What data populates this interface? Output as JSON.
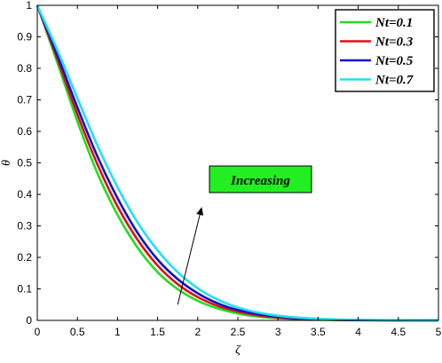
{
  "chart_data": {
    "type": "line",
    "title": "",
    "xlabel": "ζ",
    "ylabel": "θ",
    "xlim": [
      0,
      5
    ],
    "ylim": [
      0,
      1
    ],
    "x_ticks": [
      "0",
      "0.5",
      "1",
      "1.5",
      "2",
      "2.5",
      "3",
      "3.5",
      "4",
      "4.5",
      "5"
    ],
    "y_ticks": [
      "0",
      "0.1",
      "0.2",
      "0.3",
      "0.4",
      "0.5",
      "0.6",
      "0.7",
      "0.8",
      "0.9",
      "1"
    ],
    "grid": false,
    "legend_position": "top-right",
    "x": [
      0,
      0.25,
      0.5,
      0.75,
      1,
      1.25,
      1.5,
      1.75,
      2,
      2.25,
      2.5,
      2.75,
      3,
      3.25,
      3.5,
      3.75,
      4,
      4.25,
      4.5,
      4.75,
      5
    ],
    "series": [
      {
        "name": "Nt=0.1",
        "color": "#22dd22",
        "values": [
          1,
          0.818,
          0.632,
          0.467,
          0.335,
          0.231,
          0.153,
          0.099,
          0.062,
          0.038,
          0.022,
          0.012,
          0.007,
          0.004,
          0.002,
          0.001,
          0.0005,
          0.0002,
          0.0001,
          5e-05,
          0
        ]
      },
      {
        "name": "Nt=0.3",
        "color": "#dd1111",
        "values": [
          1,
          0.83,
          0.654,
          0.495,
          0.362,
          0.256,
          0.174,
          0.115,
          0.074,
          0.046,
          0.028,
          0.016,
          0.009,
          0.005,
          0.003,
          0.0015,
          0.0008,
          0.0004,
          0.0002,
          0.0001,
          0
        ]
      },
      {
        "name": "Nt=0.5",
        "color": "#1111cc",
        "values": [
          1,
          0.842,
          0.676,
          0.52,
          0.388,
          0.278,
          0.193,
          0.131,
          0.086,
          0.054,
          0.033,
          0.02,
          0.012,
          0.007,
          0.004,
          0.002,
          0.001,
          0.0006,
          0.0003,
          0.0001,
          0
        ]
      },
      {
        "name": "Nt=0.7",
        "color": "#22e0f0",
        "values": [
          1,
          0.858,
          0.705,
          0.555,
          0.423,
          0.311,
          0.222,
          0.153,
          0.102,
          0.066,
          0.041,
          0.025,
          0.015,
          0.009,
          0.005,
          0.003,
          0.0015,
          0.0008,
          0.0004,
          0.0002,
          0
        ]
      }
    ],
    "annotations": [
      {
        "text": "Increasing",
        "background": "#22ee22",
        "arrow": {
          "from": [
            1.75,
            0.05
          ],
          "to": [
            2.05,
            0.36
          ]
        }
      }
    ]
  }
}
